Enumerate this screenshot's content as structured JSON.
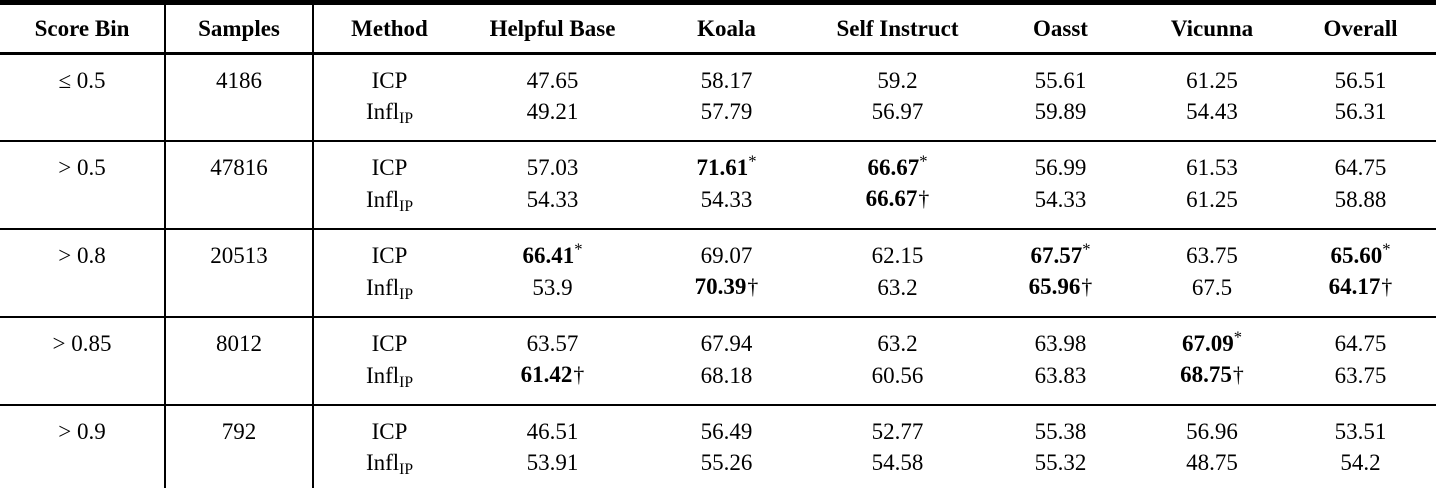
{
  "table": {
    "headers": [
      "Score Bin",
      "Samples",
      "Method",
      "Helpful Base",
      "Koala",
      "Self Instruct",
      "Oasst",
      "Vicunna",
      "Overall"
    ],
    "groups": [
      {
        "bin": "≤ 0.5",
        "samples": "4186",
        "rows": [
          {
            "method": "ICP",
            "cells": [
              {
                "v": "47.65"
              },
              {
                "v": "58.17"
              },
              {
                "v": "59.2"
              },
              {
                "v": "55.61"
              },
              {
                "v": "61.25"
              },
              {
                "v": "56.51"
              }
            ]
          },
          {
            "method": "Infl",
            "method_sub": "IP",
            "cells": [
              {
                "v": "49.21"
              },
              {
                "v": "57.79"
              },
              {
                "v": "56.97"
              },
              {
                "v": "59.89"
              },
              {
                "v": "54.43"
              },
              {
                "v": "56.31"
              }
            ]
          }
        ]
      },
      {
        "bin": "> 0.5",
        "samples": "47816",
        "rows": [
          {
            "method": "ICP",
            "cells": [
              {
                "v": "57.03"
              },
              {
                "v": "71.61",
                "bold": true,
                "mark": "*"
              },
              {
                "v": "66.67",
                "bold": true,
                "mark": "*"
              },
              {
                "v": "56.99"
              },
              {
                "v": "61.53"
              },
              {
                "v": "64.75"
              }
            ]
          },
          {
            "method": "Infl",
            "method_sub": "IP",
            "cells": [
              {
                "v": "54.33"
              },
              {
                "v": "54.33"
              },
              {
                "v": "66.67",
                "bold": true,
                "mark": "†"
              },
              {
                "v": "54.33"
              },
              {
                "v": "61.25"
              },
              {
                "v": "58.88"
              }
            ]
          }
        ]
      },
      {
        "bin": "> 0.8",
        "samples": "20513",
        "rows": [
          {
            "method": "ICP",
            "cells": [
              {
                "v": "66.41",
                "bold": true,
                "mark": "*"
              },
              {
                "v": "69.07"
              },
              {
                "v": "62.15"
              },
              {
                "v": "67.57",
                "bold": true,
                "mark": "*"
              },
              {
                "v": "63.75"
              },
              {
                "v": "65.60",
                "bold": true,
                "mark": "*"
              }
            ]
          },
          {
            "method": "Infl",
            "method_sub": "IP",
            "cells": [
              {
                "v": "53.9"
              },
              {
                "v": "70.39",
                "bold": true,
                "mark": "†"
              },
              {
                "v": "63.2"
              },
              {
                "v": "65.96",
                "bold": true,
                "mark": "†"
              },
              {
                "v": "67.5"
              },
              {
                "v": "64.17",
                "bold": true,
                "mark": "†"
              }
            ]
          }
        ]
      },
      {
        "bin": "> 0.85",
        "samples": "8012",
        "rows": [
          {
            "method": "ICP",
            "cells": [
              {
                "v": "63.57"
              },
              {
                "v": "67.94"
              },
              {
                "v": "63.2"
              },
              {
                "v": "63.98"
              },
              {
                "v": "67.09",
                "bold": true,
                "mark": "*"
              },
              {
                "v": "64.75"
              }
            ]
          },
          {
            "method": "Infl",
            "method_sub": "IP",
            "cells": [
              {
                "v": "61.42",
                "bold": true,
                "mark": "†"
              },
              {
                "v": "68.18"
              },
              {
                "v": "60.56"
              },
              {
                "v": "63.83"
              },
              {
                "v": "68.75",
                "bold": true,
                "mark": "†"
              },
              {
                "v": "63.75"
              }
            ]
          }
        ]
      },
      {
        "bin": "> 0.9",
        "samples": "792",
        "rows": [
          {
            "method": "ICP",
            "cells": [
              {
                "v": "46.51"
              },
              {
                "v": "56.49"
              },
              {
                "v": "52.77"
              },
              {
                "v": "55.38"
              },
              {
                "v": "56.96"
              },
              {
                "v": "53.51"
              }
            ]
          },
          {
            "method": "Infl",
            "method_sub": "IP",
            "cells": [
              {
                "v": "53.91"
              },
              {
                "v": "55.26"
              },
              {
                "v": "54.58"
              },
              {
                "v": "55.32"
              },
              {
                "v": "48.75"
              },
              {
                "v": "54.2"
              }
            ]
          }
        ]
      }
    ],
    "colors": {
      "text": "#000000",
      "background": "#ffffff",
      "rule": "#000000"
    }
  }
}
